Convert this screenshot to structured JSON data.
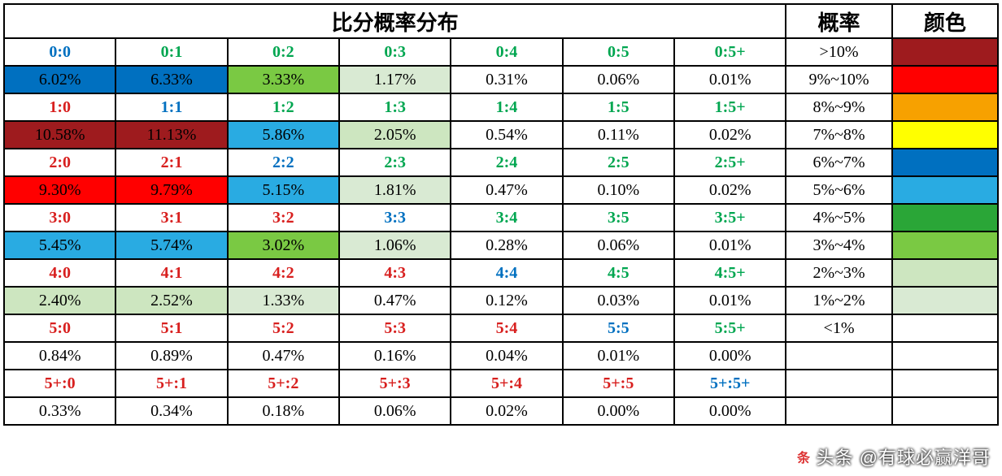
{
  "headers": {
    "main": "比分概率分布",
    "prob": "概率",
    "color": "颜色"
  },
  "colors": {
    "text_blue": "#0070c0",
    "text_green": "#00a650",
    "text_red": "#d8201f",
    "text_black": "#000000",
    "bg_white": "#ffffff",
    "bg_darkred": "#9e1b1e",
    "bg_red": "#ff0000",
    "bg_orange": "#f7a100",
    "bg_yellow": "#ffff00",
    "bg_blue": "#0070c0",
    "bg_skyblue": "#29abe2",
    "bg_green": "#2aa637",
    "bg_lime": "#7ac943",
    "bg_palegreen": "#cde6c0",
    "bg_palegreen2": "#d9ead3"
  },
  "legend": [
    {
      "label": ">10%",
      "swatch": "bg_darkred"
    },
    {
      "label": "9%~10%",
      "swatch": "bg_red"
    },
    {
      "label": "8%~9%",
      "swatch": "bg_orange"
    },
    {
      "label": "7%~8%",
      "swatch": "bg_yellow"
    },
    {
      "label": "6%~7%",
      "swatch": "bg_blue"
    },
    {
      "label": "5%~6%",
      "swatch": "bg_skyblue"
    },
    {
      "label": "4%~5%",
      "swatch": "bg_green"
    },
    {
      "label": "3%~4%",
      "swatch": "bg_lime"
    },
    {
      "label": "2%~3%",
      "swatch": "bg_palegreen"
    },
    {
      "label": "1%~2%",
      "swatch": "bg_palegreen2"
    },
    {
      "label": "<1%",
      "swatch": "bg_white"
    },
    {
      "label": "",
      "swatch": "bg_white"
    },
    {
      "label": "",
      "swatch": "bg_white"
    },
    {
      "label": "",
      "swatch": "bg_white"
    }
  ],
  "rows": [
    [
      {
        "t": "0:0",
        "fg": "text_blue"
      },
      {
        "t": "0:1",
        "fg": "text_green"
      },
      {
        "t": "0:2",
        "fg": "text_green"
      },
      {
        "t": "0:3",
        "fg": "text_green"
      },
      {
        "t": "0:4",
        "fg": "text_green"
      },
      {
        "t": "0:5",
        "fg": "text_green"
      },
      {
        "t": "0:5+",
        "fg": "text_green"
      }
    ],
    [
      {
        "t": "6.02%",
        "fg": "text_black",
        "bg": "bg_blue"
      },
      {
        "t": "6.33%",
        "fg": "text_black",
        "bg": "bg_blue"
      },
      {
        "t": "3.33%",
        "fg": "text_black",
        "bg": "bg_lime"
      },
      {
        "t": "1.17%",
        "fg": "text_black",
        "bg": "bg_palegreen2"
      },
      {
        "t": "0.31%",
        "fg": "text_black"
      },
      {
        "t": "0.06%",
        "fg": "text_black"
      },
      {
        "t": "0.01%",
        "fg": "text_black"
      }
    ],
    [
      {
        "t": "1:0",
        "fg": "text_red"
      },
      {
        "t": "1:1",
        "fg": "text_blue"
      },
      {
        "t": "1:2",
        "fg": "text_green"
      },
      {
        "t": "1:3",
        "fg": "text_green"
      },
      {
        "t": "1:4",
        "fg": "text_green"
      },
      {
        "t": "1:5",
        "fg": "text_green"
      },
      {
        "t": "1:5+",
        "fg": "text_green"
      }
    ],
    [
      {
        "t": "10.58%",
        "fg": "text_black",
        "bg": "bg_darkred"
      },
      {
        "t": "11.13%",
        "fg": "text_black",
        "bg": "bg_darkred"
      },
      {
        "t": "5.86%",
        "fg": "text_black",
        "bg": "bg_skyblue"
      },
      {
        "t": "2.05%",
        "fg": "text_black",
        "bg": "bg_palegreen"
      },
      {
        "t": "0.54%",
        "fg": "text_black"
      },
      {
        "t": "0.11%",
        "fg": "text_black"
      },
      {
        "t": "0.02%",
        "fg": "text_black"
      }
    ],
    [
      {
        "t": "2:0",
        "fg": "text_red"
      },
      {
        "t": "2:1",
        "fg": "text_red"
      },
      {
        "t": "2:2",
        "fg": "text_blue"
      },
      {
        "t": "2:3",
        "fg": "text_green"
      },
      {
        "t": "2:4",
        "fg": "text_green"
      },
      {
        "t": "2:5",
        "fg": "text_green"
      },
      {
        "t": "2:5+",
        "fg": "text_green"
      }
    ],
    [
      {
        "t": "9.30%",
        "fg": "text_black",
        "bg": "bg_red"
      },
      {
        "t": "9.79%",
        "fg": "text_black",
        "bg": "bg_red"
      },
      {
        "t": "5.15%",
        "fg": "text_black",
        "bg": "bg_skyblue"
      },
      {
        "t": "1.81%",
        "fg": "text_black",
        "bg": "bg_palegreen2"
      },
      {
        "t": "0.47%",
        "fg": "text_black"
      },
      {
        "t": "0.10%",
        "fg": "text_black"
      },
      {
        "t": "0.02%",
        "fg": "text_black"
      }
    ],
    [
      {
        "t": "3:0",
        "fg": "text_red"
      },
      {
        "t": "3:1",
        "fg": "text_red"
      },
      {
        "t": "3:2",
        "fg": "text_red"
      },
      {
        "t": "3:3",
        "fg": "text_blue"
      },
      {
        "t": "3:4",
        "fg": "text_green"
      },
      {
        "t": "3:5",
        "fg": "text_green"
      },
      {
        "t": "3:5+",
        "fg": "text_green"
      }
    ],
    [
      {
        "t": "5.45%",
        "fg": "text_black",
        "bg": "bg_skyblue"
      },
      {
        "t": "5.74%",
        "fg": "text_black",
        "bg": "bg_skyblue"
      },
      {
        "t": "3.02%",
        "fg": "text_black",
        "bg": "bg_lime"
      },
      {
        "t": "1.06%",
        "fg": "text_black",
        "bg": "bg_palegreen2"
      },
      {
        "t": "0.28%",
        "fg": "text_black"
      },
      {
        "t": "0.06%",
        "fg": "text_black"
      },
      {
        "t": "0.01%",
        "fg": "text_black"
      }
    ],
    [
      {
        "t": "4:0",
        "fg": "text_red"
      },
      {
        "t": "4:1",
        "fg": "text_red"
      },
      {
        "t": "4:2",
        "fg": "text_red"
      },
      {
        "t": "4:3",
        "fg": "text_red"
      },
      {
        "t": "4:4",
        "fg": "text_blue"
      },
      {
        "t": "4:5",
        "fg": "text_green"
      },
      {
        "t": "4:5+",
        "fg": "text_green"
      }
    ],
    [
      {
        "t": "2.40%",
        "fg": "text_black",
        "bg": "bg_palegreen"
      },
      {
        "t": "2.52%",
        "fg": "text_black",
        "bg": "bg_palegreen"
      },
      {
        "t": "1.33%",
        "fg": "text_black",
        "bg": "bg_palegreen2"
      },
      {
        "t": "0.47%",
        "fg": "text_black"
      },
      {
        "t": "0.12%",
        "fg": "text_black"
      },
      {
        "t": "0.03%",
        "fg": "text_black"
      },
      {
        "t": "0.01%",
        "fg": "text_black"
      }
    ],
    [
      {
        "t": "5:0",
        "fg": "text_red"
      },
      {
        "t": "5:1",
        "fg": "text_red"
      },
      {
        "t": "5:2",
        "fg": "text_red"
      },
      {
        "t": "5:3",
        "fg": "text_red"
      },
      {
        "t": "5:4",
        "fg": "text_red"
      },
      {
        "t": "5:5",
        "fg": "text_blue"
      },
      {
        "t": "5:5+",
        "fg": "text_green"
      }
    ],
    [
      {
        "t": "0.84%",
        "fg": "text_black"
      },
      {
        "t": "0.89%",
        "fg": "text_black"
      },
      {
        "t": "0.47%",
        "fg": "text_black"
      },
      {
        "t": "0.16%",
        "fg": "text_black"
      },
      {
        "t": "0.04%",
        "fg": "text_black"
      },
      {
        "t": "0.01%",
        "fg": "text_black"
      },
      {
        "t": "0.00%",
        "fg": "text_black"
      }
    ],
    [
      {
        "t": "5+:0",
        "fg": "text_red"
      },
      {
        "t": "5+:1",
        "fg": "text_red"
      },
      {
        "t": "5+:2",
        "fg": "text_red"
      },
      {
        "t": "5+:3",
        "fg": "text_red"
      },
      {
        "t": "5+:4",
        "fg": "text_red"
      },
      {
        "t": "5+:5",
        "fg": "text_red"
      },
      {
        "t": "5+:5+",
        "fg": "text_blue"
      }
    ],
    [
      {
        "t": "0.33%",
        "fg": "text_black"
      },
      {
        "t": "0.34%",
        "fg": "text_black"
      },
      {
        "t": "0.18%",
        "fg": "text_black"
      },
      {
        "t": "0.06%",
        "fg": "text_black"
      },
      {
        "t": "0.02%",
        "fg": "text_black"
      },
      {
        "t": "0.00%",
        "fg": "text_black"
      },
      {
        "t": "0.00%",
        "fg": "text_black"
      }
    ]
  ],
  "watermark": "头条 @有球必赢洋哥"
}
